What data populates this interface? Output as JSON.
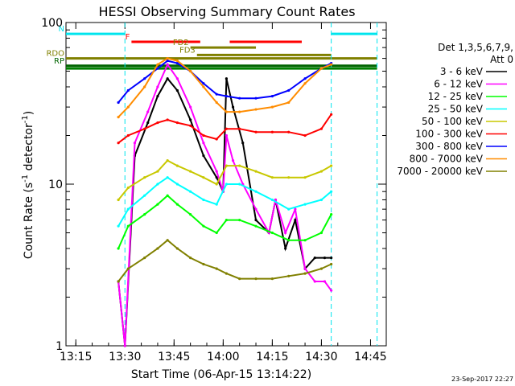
{
  "chart_data": {
    "type": "line",
    "title": "HESSI Observing Summary Count Rates",
    "xlabel": "Start Time (06-Apr-15 13:14:22)",
    "ylabel_main": "Count Rate (s",
    "ylabel_sup1": "-1",
    "ylabel_mid": " detector",
    "ylabel_sup2": "-1",
    "ylabel_end": ")",
    "y_scale": "log",
    "ylim": [
      1,
      100
    ],
    "xlim_minutes": [
      13.2,
      14.83
    ],
    "x_ticks": [
      "13:15",
      "13:30",
      "13:45",
      "14:00",
      "14:15",
      "14:30",
      "14:45"
    ],
    "y_ticks": [
      "1",
      "10",
      "100"
    ],
    "legend_title_line1": "Det 1,3,5,6,7,9,",
    "legend_title_line2": "Att 0",
    "timestamp": "23-Sep-2017 22:27",
    "series": [
      {
        "name": "3 - 6 keV",
        "color": "#000000",
        "x": [
          "13:28",
          "13:30",
          "13:33",
          "13:37",
          "13:40",
          "13:43",
          "13:46",
          "13:50",
          "13:54",
          "13:58",
          "14:00",
          "14:01",
          "14:03",
          "14:06",
          "14:10",
          "14:14",
          "14:16",
          "14:19",
          "14:22",
          "14:25",
          "14:28",
          "14:31",
          "14:33"
        ],
        "values": [
          2.5,
          1.0,
          15,
          24,
          35,
          45,
          38,
          25,
          15,
          11,
          9,
          45,
          30,
          18,
          6.0,
          5.0,
          8.0,
          4.0,
          6.0,
          3.0,
          3.5,
          3.5,
          3.5
        ]
      },
      {
        "name": "6 - 12 keV",
        "color": "#ff00ff",
        "x": [
          "13:28",
          "13:30",
          "13:33",
          "13:37",
          "13:40",
          "13:43",
          "13:46",
          "13:50",
          "13:54",
          "13:58",
          "14:00",
          "14:01",
          "14:03",
          "14:06",
          "14:10",
          "14:14",
          "14:16",
          "14:19",
          "14:22",
          "14:25",
          "14:28",
          "14:31",
          "14:33"
        ],
        "values": [
          2.5,
          1.0,
          18,
          28,
          40,
          55,
          45,
          30,
          18,
          12,
          9,
          20,
          14,
          10,
          7.0,
          5.0,
          8.0,
          5.0,
          7.0,
          3.0,
          2.5,
          2.5,
          2.2
        ]
      },
      {
        "name": "12 - 25 keV",
        "color": "#00ff00",
        "x": [
          "13:28",
          "13:31",
          "13:36",
          "13:40",
          "13:43",
          "13:46",
          "13:50",
          "13:54",
          "13:58",
          "14:01",
          "14:05",
          "14:10",
          "14:15",
          "14:20",
          "14:25",
          "14:30",
          "14:33"
        ],
        "values": [
          4.0,
          5.5,
          6.5,
          7.5,
          8.5,
          7.5,
          6.5,
          5.5,
          5.0,
          6.0,
          6.0,
          5.5,
          5.0,
          4.5,
          4.5,
          5.0,
          6.5
        ]
      },
      {
        "name": "25 - 50 keV",
        "color": "#00ffff",
        "x": [
          "13:28",
          "13:31",
          "13:36",
          "13:40",
          "13:43",
          "13:46",
          "13:50",
          "13:54",
          "13:58",
          "14:01",
          "14:05",
          "14:10",
          "14:15",
          "14:20",
          "14:25",
          "14:30",
          "14:33"
        ],
        "values": [
          5.5,
          7.0,
          8.5,
          10,
          11,
          10,
          9.0,
          8.0,
          7.5,
          10,
          10,
          9.0,
          8.0,
          7.0,
          7.5,
          8.0,
          9.0
        ]
      },
      {
        "name": "50 - 100 keV",
        "color": "#c8c800",
        "x": [
          "13:28",
          "13:31",
          "13:36",
          "13:40",
          "13:43",
          "13:46",
          "13:50",
          "13:54",
          "13:58",
          "14:01",
          "14:05",
          "14:10",
          "14:15",
          "14:20",
          "14:25",
          "14:30",
          "14:33"
        ],
        "values": [
          8.0,
          9.5,
          11,
          12,
          14,
          13,
          12,
          11,
          10,
          13,
          13,
          12,
          11,
          11,
          11,
          12,
          13
        ]
      },
      {
        "name": "100 - 300 keV",
        "color": "#ff0000",
        "x": [
          "13:28",
          "13:31",
          "13:36",
          "13:40",
          "13:43",
          "13:46",
          "13:50",
          "13:54",
          "13:58",
          "14:01",
          "14:05",
          "14:10",
          "14:15",
          "14:20",
          "14:25",
          "14:30",
          "14:33"
        ],
        "values": [
          18,
          20,
          22,
          24,
          25,
          24,
          23,
          20,
          19,
          22,
          22,
          21,
          21,
          21,
          20,
          22,
          27
        ]
      },
      {
        "name": "300 - 800 keV",
        "color": "#0000ff",
        "x": [
          "13:28",
          "13:31",
          "13:36",
          "13:40",
          "13:43",
          "13:46",
          "13:50",
          "13:54",
          "13:58",
          "14:01",
          "14:05",
          "14:10",
          "14:15",
          "14:20",
          "14:25",
          "14:30",
          "14:33"
        ],
        "values": [
          32,
          38,
          45,
          52,
          58,
          56,
          50,
          42,
          36,
          35,
          34,
          34,
          35,
          38,
          45,
          52,
          56
        ]
      },
      {
        "name": "800 - 7000 keV",
        "color": "#ff8c00",
        "x": [
          "13:28",
          "13:31",
          "13:36",
          "13:40",
          "13:43",
          "13:46",
          "13:50",
          "13:54",
          "13:58",
          "14:01",
          "14:05",
          "14:10",
          "14:15",
          "14:20",
          "14:25",
          "14:30",
          "14:33"
        ],
        "values": [
          26,
          30,
          40,
          55,
          60,
          58,
          50,
          40,
          32,
          28,
          28,
          29,
          30,
          32,
          42,
          52,
          55
        ]
      },
      {
        "name": "7000 - 20000 keV",
        "color": "#808000",
        "x": [
          "13:28",
          "13:31",
          "13:36",
          "13:40",
          "13:43",
          "13:46",
          "13:50",
          "13:54",
          "13:58",
          "14:01",
          "14:05",
          "14:10",
          "14:15",
          "14:20",
          "14:25",
          "14:30",
          "14:33"
        ],
        "values": [
          2.5,
          3.0,
          3.5,
          4.0,
          4.5,
          4.0,
          3.5,
          3.2,
          3.0,
          2.8,
          2.6,
          2.6,
          2.6,
          2.7,
          2.8,
          3.0,
          3.2
        ]
      }
    ],
    "flags": [
      {
        "label": "N",
        "color": "#00e5ee",
        "y": 85,
        "x": [
          [
            "13:12",
            "13:30"
          ],
          [
            "14:33",
            "14:47"
          ]
        ]
      },
      {
        "label": "F",
        "color": "#ff0000",
        "y": 76,
        "x": [
          [
            "13:32",
            "13:53"
          ],
          [
            "14:02",
            "14:24"
          ]
        ]
      },
      {
        "label": "FD2",
        "color": "#808000",
        "y": 70,
        "x": [
          [
            "13:50",
            "14:10"
          ]
        ]
      },
      {
        "label": "FD3",
        "color": "#808000",
        "y": 63,
        "x": [
          [
            "13:52",
            "14:33"
          ]
        ]
      },
      {
        "label": "RDO",
        "color": "#808000",
        "y": 60,
        "x": [
          [
            "13:12",
            "14:47"
          ]
        ]
      },
      {
        "label": "RP",
        "color": "#006400",
        "y": 54,
        "x": [
          [
            "13:12",
            "14:47"
          ]
        ]
      },
      {
        "label": "",
        "color": "#008000",
        "y": 52,
        "x": [
          [
            "13:12",
            "14:47"
          ]
        ]
      }
    ]
  }
}
